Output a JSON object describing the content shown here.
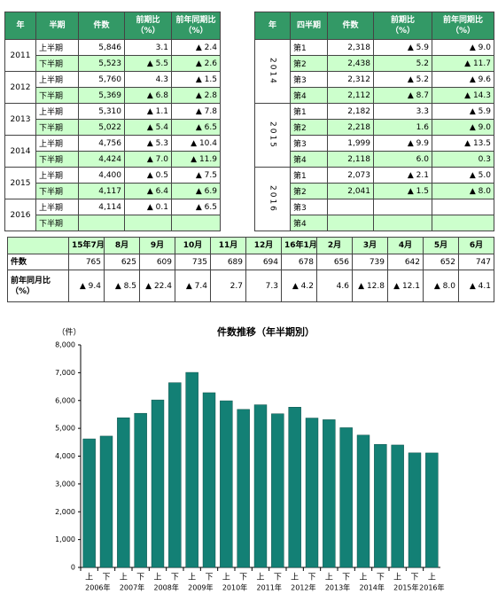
{
  "tables": {
    "left": {
      "header": [
        [
          "年"
        ],
        [
          "半期"
        ],
        [
          "件数"
        ],
        [
          "前期比",
          "（%）"
        ],
        [
          "前年同期比",
          "（%）"
        ]
      ],
      "groups": [
        {
          "year": "2011",
          "rows": [
            [
              "上半期",
              "5,846",
              "3.1",
              "▲ 2.4"
            ],
            [
              "下半期",
              "5,523",
              "▲ 5.5",
              "▲ 2.6"
            ]
          ]
        },
        {
          "year": "2012",
          "rows": [
            [
              "上半期",
              "5,760",
              "4.3",
              "▲ 1.5"
            ],
            [
              "下半期",
              "5,369",
              "▲ 6.8",
              "▲ 2.8"
            ]
          ]
        },
        {
          "year": "2013",
          "rows": [
            [
              "上半期",
              "5,310",
              "▲ 1.1",
              "▲ 7.8"
            ],
            [
              "下半期",
              "5,022",
              "▲ 5.4",
              "▲ 6.5"
            ]
          ]
        },
        {
          "year": "2014",
          "rows": [
            [
              "上半期",
              "4,756",
              "▲ 5.3",
              "▲ 10.4"
            ],
            [
              "下半期",
              "4,424",
              "▲ 7.0",
              "▲ 11.9"
            ]
          ]
        },
        {
          "year": "2015",
          "rows": [
            [
              "上半期",
              "4,400",
              "▲ 0.5",
              "▲ 7.5"
            ],
            [
              "下半期",
              "4,117",
              "▲ 6.4",
              "▲ 6.9"
            ]
          ]
        },
        {
          "year": "2016",
          "rows": [
            [
              "上半期",
              "4,114",
              "▲ 0.1",
              "▲ 6.5"
            ],
            [
              "下半期"
            ]
          ]
        }
      ]
    },
    "right": {
      "header": [
        [
          "年"
        ],
        [
          "四半期"
        ],
        [
          "件数"
        ],
        [
          "前期比",
          "（%）"
        ],
        [
          "前年同期比",
          "（%）"
        ]
      ],
      "groups": [
        {
          "year": "2014",
          "rows": [
            [
              "第1",
              "2,318",
              "▲ 5.9",
              "▲ 9.0"
            ],
            [
              "第2",
              "2,438",
              "5.2",
              "▲ 11.7"
            ],
            [
              "第3",
              "2,312",
              "▲ 5.2",
              "▲ 9.6"
            ],
            [
              "第4",
              "2,112",
              "▲ 8.7",
              "▲ 14.3"
            ]
          ]
        },
        {
          "year": "2015",
          "rows": [
            [
              "第1",
              "2,182",
              "3.3",
              "▲ 5.9"
            ],
            [
              "第2",
              "2,218",
              "1.6",
              "▲ 9.0"
            ],
            [
              "第3",
              "1,999",
              "▲ 9.9",
              "▲ 13.5"
            ],
            [
              "第4",
              "2,118",
              "6.0",
              "0.3"
            ]
          ]
        },
        {
          "year": "2016",
          "rows": [
            [
              "第1",
              "2,073",
              "▲ 2.1",
              "▲ 5.0"
            ],
            [
              "第2",
              "2,041",
              "▲ 1.5",
              "▲ 8.0"
            ],
            [
              "第3"
            ],
            [
              "第4"
            ]
          ]
        }
      ]
    },
    "monthly": {
      "header": [
        "15年7月",
        "8月",
        "9月",
        "10月",
        "11月",
        "12月",
        "16年1月",
        "2月",
        "3月",
        "4月",
        "5月",
        "6月"
      ],
      "rows": [
        {
          "label": [
            "件数"
          ],
          "cells": [
            "765",
            "625",
            "609",
            "735",
            "689",
            "694",
            "678",
            "656",
            "739",
            "642",
            "652",
            "747"
          ]
        },
        {
          "label": [
            "前年同月比",
            "（%）"
          ],
          "cells": [
            "▲ 9.4",
            "▲ 8.5",
            "▲ 22.4",
            "▲ 7.4",
            "2.7",
            "7.3",
            "▲ 4.2",
            "4.6",
            "▲ 12.8",
            "▲ 12.1",
            "▲ 8.0",
            "▲ 4.1"
          ]
        }
      ]
    }
  },
  "chart_data": {
    "type": "bar",
    "title": "件数推移（年半期別）",
    "y_label": "（件）",
    "categories": [
      "上",
      "下",
      "上",
      "下",
      "上",
      "下",
      "上",
      "下",
      "上",
      "下",
      "上",
      "下",
      "上",
      "下",
      "上",
      "下",
      "上",
      "下",
      "上",
      "下",
      "上"
    ],
    "year_labels": [
      "2006年",
      "2007年",
      "2008年",
      "2009年",
      "2010年",
      "2011年",
      "2012年",
      "2013年",
      "2014年",
      "2015年",
      "2016年"
    ],
    "values": [
      4620,
      4720,
      5380,
      5540,
      6020,
      6640,
      7010,
      6280,
      5990,
      5680,
      5846,
      5523,
      5760,
      5369,
      5310,
      5022,
      4756,
      4424,
      4400,
      4117,
      4114
    ],
    "color": "#138075",
    "ylim": [
      0,
      8000
    ],
    "yticks": [
      0,
      {
        "value": 1000,
        "label": "1,000"
      },
      {
        "value": 2000,
        "label": "2,000"
      },
      {
        "value": 3000,
        "label": "3,000"
      },
      {
        "value": 4000,
        "label": "4,000"
      },
      {
        "value": 5000,
        "label": "5,000"
      },
      {
        "value": 6000,
        "label": "6,000"
      },
      {
        "value": 7000,
        "label": "7,000"
      },
      {
        "value": 8000,
        "label": "8,000"
      }
    ],
    "grid": false
  }
}
